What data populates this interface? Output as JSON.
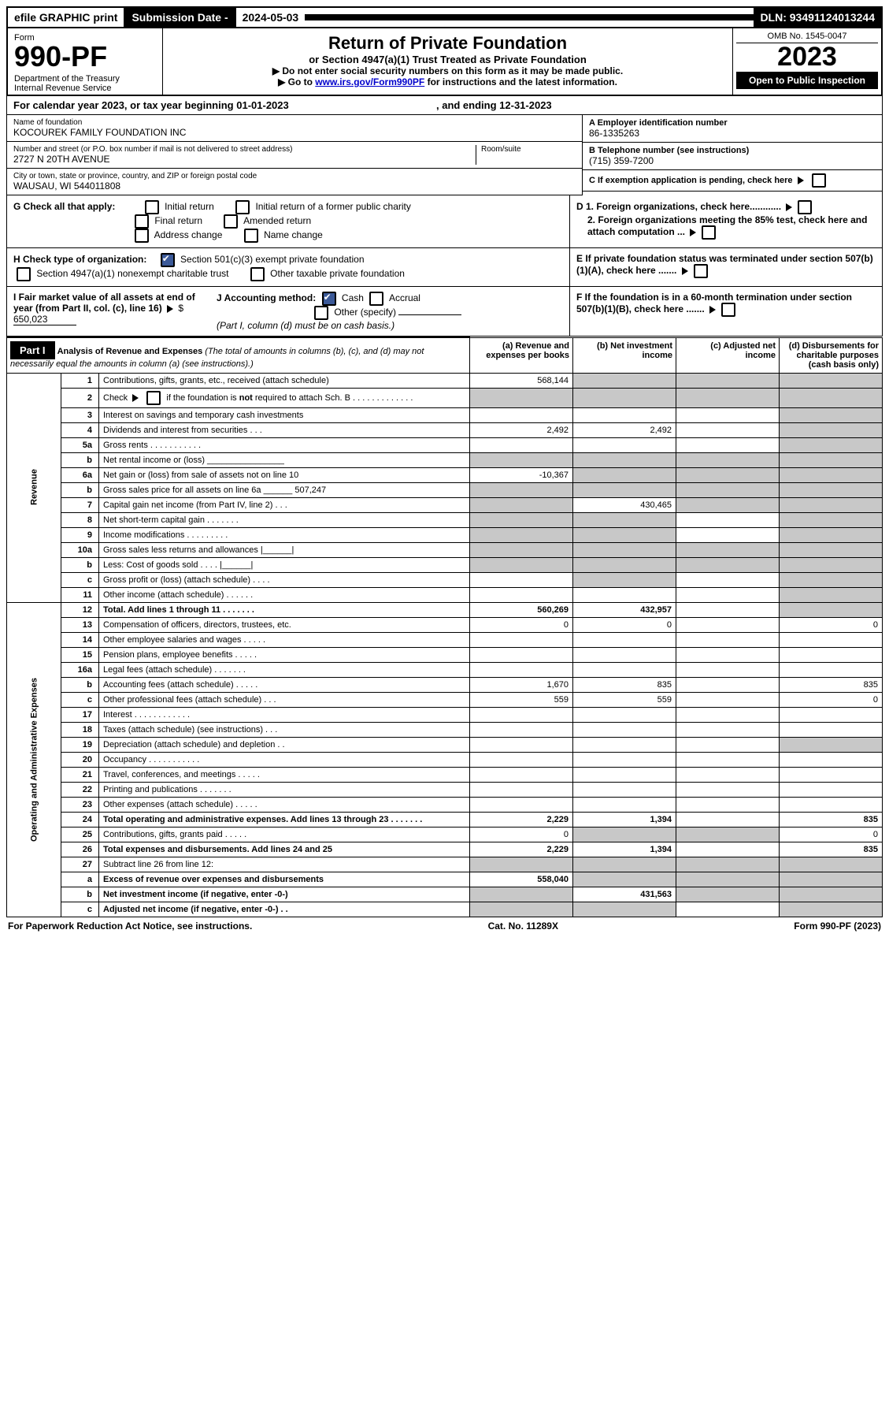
{
  "topbar": {
    "efile": "efile GRAPHIC print",
    "subdate_label": "Submission Date - ",
    "subdate": "2024-05-03",
    "dln": "DLN: 93491124013244"
  },
  "header": {
    "form_label": "Form",
    "form_number": "990-PF",
    "dept": "Department of the Treasury\nInternal Revenue Service",
    "title": "Return of Private Foundation",
    "subtitle": "or Section 4947(a)(1) Trust Treated as Private Foundation",
    "instr1": "▶ Do not enter social security numbers on this form as it may be made public.",
    "instr2_pre": "▶ Go to ",
    "instr2_link": "www.irs.gov/Form990PF",
    "instr2_post": " for instructions and the latest information.",
    "omb": "OMB No. 1545-0047",
    "year": "2023",
    "open": "Open to Public Inspection"
  },
  "calyear": {
    "pre": "For calendar year 2023, or tax year beginning ",
    "begin": "01-01-2023",
    "mid": " , and ending ",
    "end": "12-31-2023"
  },
  "info": {
    "name_label": "Name of foundation",
    "name": "KOCOUREK FAMILY FOUNDATION INC",
    "street_label": "Number and street (or P.O. box number if mail is not delivered to street address)",
    "street": "2727 N 20TH AVENUE",
    "room_label": "Room/suite",
    "city_label": "City or town, state or province, country, and ZIP or foreign postal code",
    "city": "WAUSAU, WI  544011808",
    "ein_label": "A Employer identification number",
    "ein": "86-1335263",
    "phone_label": "B Telephone number (see instructions)",
    "phone": "(715) 359-7200",
    "c_label": "C If exemption application is pending, check here",
    "d1_label": "D 1. Foreign organizations, check here............",
    "d2_label": "2. Foreign organizations meeting the 85% test, check here and attach computation ...",
    "e_label": "E If private foundation status was terminated under section 507(b)(1)(A), check here .......",
    "f_label": "F If the foundation is in a 60-month termination under section 507(b)(1)(B), check here .......",
    "g_label": "G Check all that apply:",
    "g_opts": [
      "Initial return",
      "Initial return of a former public charity",
      "Final return",
      "Amended return",
      "Address change",
      "Name change"
    ],
    "h_label": "H Check type of organization:",
    "h_opt1": "Section 501(c)(3) exempt private foundation",
    "h_opt2": "Section 4947(a)(1) nonexempt charitable trust",
    "h_opt3": "Other taxable private foundation",
    "i_label": "I Fair market value of all assets at end of year (from Part II, col. (c), line 16)",
    "i_val": "650,023",
    "j_label": "J Accounting method:",
    "j_opts": [
      "Cash",
      "Accrual",
      "Other (specify)"
    ],
    "j_note": "(Part I, column (d) must be on cash basis.)"
  },
  "part1": {
    "label": "Part I",
    "title": "Analysis of Revenue and Expenses",
    "title_note": " (The total of amounts in columns (b), (c), and (d) may not necessarily equal the amounts in column (a) (see instructions).)",
    "cols": {
      "a": "(a) Revenue and expenses per books",
      "b": "(b) Net investment income",
      "c": "(c) Adjusted net income",
      "d": "(d) Disbursements for charitable purposes (cash basis only)"
    }
  },
  "sections": {
    "revenue": "Revenue",
    "opex": "Operating and Administrative Expenses"
  },
  "lines": [
    {
      "n": "1",
      "d": "Contributions, gifts, grants, etc., received (attach schedule)",
      "a": "568,144",
      "b": "",
      "c": "",
      "dcol": "",
      "shadeB": true,
      "shadeC": true,
      "shadeD": true
    },
    {
      "n": "2",
      "d": "Check ▶ ☐ if the foundation is not required to attach Sch. B",
      "a": "",
      "b": "",
      "c": "",
      "dcol": "",
      "shadeA": true,
      "shadeB": true,
      "shadeC": true,
      "shadeD": true,
      "bold_not": true
    },
    {
      "n": "3",
      "d": "Interest on savings and temporary cash investments",
      "a": "",
      "b": "",
      "c": "",
      "dcol": "",
      "shadeD": true
    },
    {
      "n": "4",
      "d": "Dividends and interest from securities   .   .   .",
      "a": "2,492",
      "b": "2,492",
      "c": "",
      "dcol": "",
      "shadeD": true
    },
    {
      "n": "5a",
      "d": "Gross rents   .   .   .   .   .   .   .   .   .   .   .",
      "a": "",
      "b": "",
      "c": "",
      "dcol": "",
      "shadeD": true
    },
    {
      "n": "b",
      "d": "Net rental income or (loss)  ________________",
      "a": "",
      "b": "",
      "c": "",
      "dcol": "",
      "shadeA": true,
      "shadeB": true,
      "shadeC": true,
      "shadeD": true
    },
    {
      "n": "6a",
      "d": "Net gain or (loss) from sale of assets not on line 10",
      "a": "-10,367",
      "b": "",
      "c": "",
      "dcol": "",
      "shadeB": true,
      "shadeC": true,
      "shadeD": true
    },
    {
      "n": "b",
      "d": "Gross sales price for all assets on line 6a ______ 507,247",
      "a": "",
      "b": "",
      "c": "",
      "dcol": "",
      "shadeA": true,
      "shadeB": true,
      "shadeC": true,
      "shadeD": true
    },
    {
      "n": "7",
      "d": "Capital gain net income (from Part IV, line 2)   .   .   .",
      "a": "",
      "b": "430,465",
      "c": "",
      "dcol": "",
      "shadeA": true,
      "shadeC": true,
      "shadeD": true
    },
    {
      "n": "8",
      "d": "Net short-term capital gain   .   .   .   .   .   .   .",
      "a": "",
      "b": "",
      "c": "",
      "dcol": "",
      "shadeA": true,
      "shadeB": true,
      "shadeD": true
    },
    {
      "n": "9",
      "d": "Income modifications   .   .   .   .   .   .   .   .   .",
      "a": "",
      "b": "",
      "c": "",
      "dcol": "",
      "shadeA": true,
      "shadeB": true,
      "shadeD": true
    },
    {
      "n": "10a",
      "d": "Gross sales less returns and allowances  |______|",
      "a": "",
      "b": "",
      "c": "",
      "dcol": "",
      "shadeA": true,
      "shadeB": true,
      "shadeC": true,
      "shadeD": true
    },
    {
      "n": "b",
      "d": "Less: Cost of goods sold   .   .   .   .  |______|",
      "a": "",
      "b": "",
      "c": "",
      "dcol": "",
      "shadeA": true,
      "shadeB": true,
      "shadeC": true,
      "shadeD": true
    },
    {
      "n": "c",
      "d": "Gross profit or (loss) (attach schedule)   .   .   .   .",
      "a": "",
      "b": "",
      "c": "",
      "dcol": "",
      "shadeB": true,
      "shadeD": true
    },
    {
      "n": "11",
      "d": "Other income (attach schedule)   .   .   .   .   .   .",
      "a": "",
      "b": "",
      "c": "",
      "dcol": "",
      "shadeD": true
    },
    {
      "n": "12",
      "d": "Total. Add lines 1 through 11   .   .   .   .   .   .   .",
      "a": "560,269",
      "b": "432,957",
      "c": "",
      "dcol": "",
      "shadeD": true,
      "bold": true
    },
    {
      "n": "13",
      "d": "Compensation of officers, directors, trustees, etc.",
      "a": "0",
      "b": "0",
      "c": "",
      "dcol": "0"
    },
    {
      "n": "14",
      "d": "Other employee salaries and wages   .   .   .   .   .",
      "a": "",
      "b": "",
      "c": "",
      "dcol": ""
    },
    {
      "n": "15",
      "d": "Pension plans, employee benefits   .   .   .   .   .",
      "a": "",
      "b": "",
      "c": "",
      "dcol": ""
    },
    {
      "n": "16a",
      "d": "Legal fees (attach schedule)   .   .   .   .   .   .   .",
      "a": "",
      "b": "",
      "c": "",
      "dcol": ""
    },
    {
      "n": "b",
      "d": "Accounting fees (attach schedule)   .   .   .   .   .",
      "a": "1,670",
      "b": "835",
      "c": "",
      "dcol": "835"
    },
    {
      "n": "c",
      "d": "Other professional fees (attach schedule)   .   .   .",
      "a": "559",
      "b": "559",
      "c": "",
      "dcol": "0"
    },
    {
      "n": "17",
      "d": "Interest   .   .   .   .   .   .   .   .   .   .   .   .",
      "a": "",
      "b": "",
      "c": "",
      "dcol": ""
    },
    {
      "n": "18",
      "d": "Taxes (attach schedule) (see instructions)   .   .   .",
      "a": "",
      "b": "",
      "c": "",
      "dcol": ""
    },
    {
      "n": "19",
      "d": "Depreciation (attach schedule) and depletion   .   .",
      "a": "",
      "b": "",
      "c": "",
      "dcol": "",
      "shadeD": true
    },
    {
      "n": "20",
      "d": "Occupancy   .   .   .   .   .   .   .   .   .   .   .",
      "a": "",
      "b": "",
      "c": "",
      "dcol": ""
    },
    {
      "n": "21",
      "d": "Travel, conferences, and meetings   .   .   .   .   .",
      "a": "",
      "b": "",
      "c": "",
      "dcol": ""
    },
    {
      "n": "22",
      "d": "Printing and publications   .   .   .   .   .   .   .",
      "a": "",
      "b": "",
      "c": "",
      "dcol": ""
    },
    {
      "n": "23",
      "d": "Other expenses (attach schedule)   .   .   .   .   .",
      "a": "",
      "b": "",
      "c": "",
      "dcol": ""
    },
    {
      "n": "24",
      "d": "Total operating and administrative expenses. Add lines 13 through 23   .   .   .   .   .   .   .",
      "a": "2,229",
      "b": "1,394",
      "c": "",
      "dcol": "835",
      "bold": true
    },
    {
      "n": "25",
      "d": "Contributions, gifts, grants paid   .   .   .   .   .",
      "a": "0",
      "b": "",
      "c": "",
      "dcol": "0",
      "shadeB": true,
      "shadeC": true
    },
    {
      "n": "26",
      "d": "Total expenses and disbursements. Add lines 24 and 25",
      "a": "2,229",
      "b": "1,394",
      "c": "",
      "dcol": "835",
      "bold": true
    },
    {
      "n": "27",
      "d": "Subtract line 26 from line 12:",
      "a": "",
      "b": "",
      "c": "",
      "dcol": "",
      "shadeA": true,
      "shadeB": true,
      "shadeC": true,
      "shadeD": true
    },
    {
      "n": "a",
      "d": "Excess of revenue over expenses and disbursements",
      "a": "558,040",
      "b": "",
      "c": "",
      "dcol": "",
      "shadeB": true,
      "shadeC": true,
      "shadeD": true,
      "bold": true
    },
    {
      "n": "b",
      "d": "Net investment income (if negative, enter -0-)",
      "a": "",
      "b": "431,563",
      "c": "",
      "dcol": "",
      "shadeA": true,
      "shadeC": true,
      "shadeD": true,
      "bold": true
    },
    {
      "n": "c",
      "d": "Adjusted net income (if negative, enter -0-)   .   .",
      "a": "",
      "b": "",
      "c": "",
      "dcol": "",
      "shadeA": true,
      "shadeB": true,
      "shadeD": true,
      "bold": true
    }
  ],
  "footer": {
    "pra": "For Paperwork Reduction Act Notice, see instructions.",
    "cat": "Cat. No. 11289X",
    "form": "Form 990-PF (2023)"
  },
  "revenue_end_idx": 15,
  "opex_start_idx": 15
}
